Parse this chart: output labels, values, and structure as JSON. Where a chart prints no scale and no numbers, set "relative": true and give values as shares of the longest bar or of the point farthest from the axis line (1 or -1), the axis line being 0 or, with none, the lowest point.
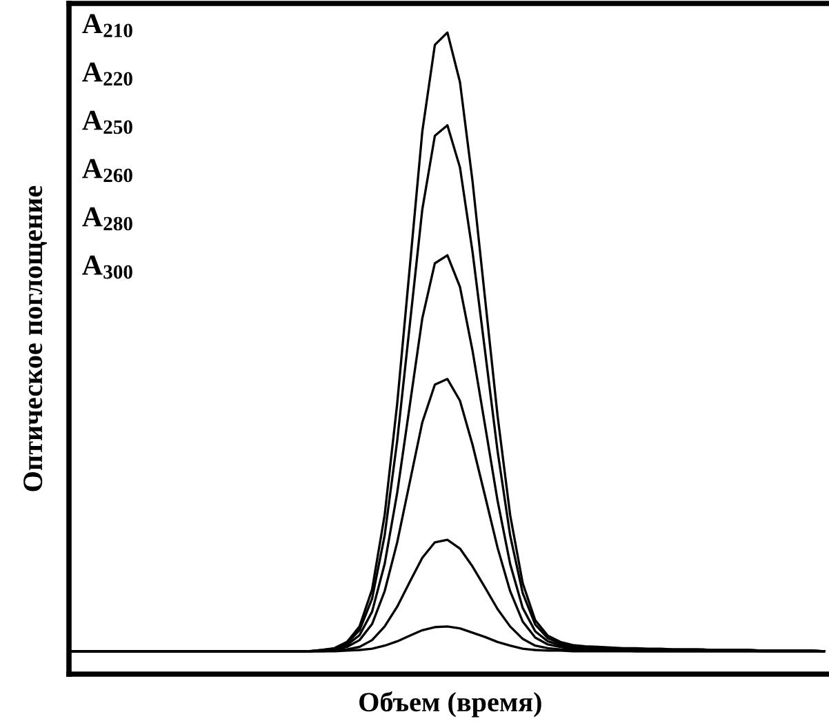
{
  "chart_data": {
    "type": "line",
    "relative": true,
    "xlabel": "Объем (время)",
    "ylabel": "Оптическое поглощение",
    "annotations": [
      "A$_{210}$",
      "A$_{220}$",
      "A$_{250}$",
      "A$_{260}$",
      "A$_{280}$",
      "A$_{300}$"
    ],
    "marker": "none",
    "line_style": "solid",
    "categories": [
      null,
      null,
      null,
      null,
      null,
      null,
      null,
      null,
      null,
      null,
      null,
      null,
      null,
      null,
      null,
      null,
      null,
      null,
      null,
      null,
      null,
      null,
      null,
      null,
      null,
      null,
      null,
      null,
      null,
      null,
      null,
      null,
      null,
      null,
      null,
      null,
      null,
      null,
      null,
      null,
      null,
      null,
      null,
      null,
      null,
      null,
      null,
      null,
      null,
      null,
      null,
      null,
      null,
      null,
      null,
      null,
      null,
      null,
      null,
      null,
      null
    ],
    "series": [
      {
        "color": "#000000",
        "values": [
          0,
          0,
          0,
          0,
          0,
          0,
          0,
          0,
          0,
          0,
          0,
          0,
          0,
          0,
          0,
          0,
          0,
          0,
          0,
          0,
          0.002,
          0.005,
          0.015,
          0.04,
          0.1,
          0.22,
          0.4,
          0.62,
          0.84,
          0.98,
          1,
          0.92,
          0.76,
          0.57,
          0.38,
          0.22,
          0.11,
          0.05,
          0.025,
          0.015,
          0.01,
          0.008,
          0.007,
          0.006,
          0.005,
          0.005,
          0.004,
          0.004,
          0.003,
          0.003,
          0.003,
          0.002,
          0.002,
          0.002,
          0.002,
          0.001,
          0.001,
          0.001,
          0.001,
          0.001,
          0
        ]
      },
      {
        "color": "#000000",
        "values": [
          0,
          0,
          0,
          0,
          0,
          0,
          0,
          0,
          0,
          0,
          0,
          0,
          0,
          0,
          0,
          0,
          0,
          0,
          0,
          0,
          0.002,
          0.004,
          0.013,
          0.034,
          0.085,
          0.187,
          0.34,
          0.527,
          0.714,
          0.833,
          0.85,
          0.782,
          0.646,
          0.485,
          0.323,
          0.187,
          0.094,
          0.043,
          0.021,
          0.013,
          0.009,
          0.007,
          0.006,
          0.005,
          0.004,
          0.004,
          0.003,
          0.003,
          0.003,
          0.003,
          0.003,
          0.002,
          0.002,
          0.002,
          0.002,
          0.001,
          0.001,
          0.001,
          0.001,
          0.001,
          0
        ]
      },
      {
        "color": "#000000",
        "values": [
          0,
          0,
          0,
          0,
          0,
          0,
          0,
          0,
          0,
          0,
          0,
          0,
          0,
          0,
          0,
          0,
          0,
          0,
          0,
          0,
          0.001,
          0.003,
          0.01,
          0.026,
          0.064,
          0.141,
          0.256,
          0.397,
          0.538,
          0.627,
          0.64,
          0.589,
          0.486,
          0.365,
          0.243,
          0.141,
          0.07,
          0.032,
          0.016,
          0.01,
          0.006,
          0.005,
          0.004,
          0.004,
          0.003,
          0.003,
          0.003,
          0.003,
          0.002,
          0.002,
          0.002,
          0.001,
          0.001,
          0.001,
          0.001,
          0.001,
          0.001,
          0.001,
          0.001,
          0.001,
          0
        ]
      },
      {
        "color": "#000000",
        "values": [
          0,
          0,
          0,
          0,
          0,
          0,
          0,
          0,
          0,
          0,
          0,
          0,
          0,
          0,
          0,
          0,
          0,
          0,
          0,
          0,
          0.001,
          0.002,
          0.007,
          0.018,
          0.044,
          0.097,
          0.176,
          0.273,
          0.37,
          0.431,
          0.44,
          0.405,
          0.334,
          0.251,
          0.167,
          0.097,
          0.048,
          0.022,
          0.011,
          0.007,
          0.004,
          0.004,
          0.003,
          0.003,
          0.002,
          0.002,
          0.002,
          0.002,
          0.001,
          0.001,
          0.001,
          0.001,
          0.001,
          0.001,
          0.001,
          0,
          0,
          0,
          0,
          0,
          0
        ]
      },
      {
        "color": "#000000",
        "values": [
          0,
          0,
          0,
          0,
          0,
          0,
          0,
          0,
          0,
          0,
          0,
          0,
          0,
          0,
          0,
          0,
          0,
          0,
          0,
          0,
          0,
          0.001,
          0.003,
          0.007,
          0.018,
          0.04,
          0.072,
          0.112,
          0.151,
          0.176,
          0.18,
          0.166,
          0.137,
          0.103,
          0.068,
          0.04,
          0.02,
          0.009,
          0.005,
          0.003,
          0.002,
          0.001,
          0.001,
          0.001,
          0.001,
          0,
          0,
          0,
          0,
          0,
          0,
          0,
          0,
          0,
          0,
          0,
          0,
          0,
          0,
          0,
          0
        ]
      },
      {
        "color": "#000000",
        "values": [
          0,
          0,
          0,
          0,
          0,
          0,
          0,
          0,
          0,
          0,
          0,
          0,
          0,
          0,
          0,
          0,
          0,
          0,
          0,
          0,
          0,
          0,
          0.001,
          0.002,
          0.004,
          0.009,
          0.016,
          0.025,
          0.034,
          0.039,
          0.04,
          0.037,
          0.03,
          0.023,
          0.015,
          0.009,
          0.004,
          0.002,
          0.001,
          0.001,
          0,
          0,
          0,
          0,
          0,
          0,
          0,
          0,
          0,
          0,
          0,
          0,
          0,
          0,
          0,
          0,
          0,
          0,
          0,
          0,
          0
        ]
      }
    ]
  }
}
